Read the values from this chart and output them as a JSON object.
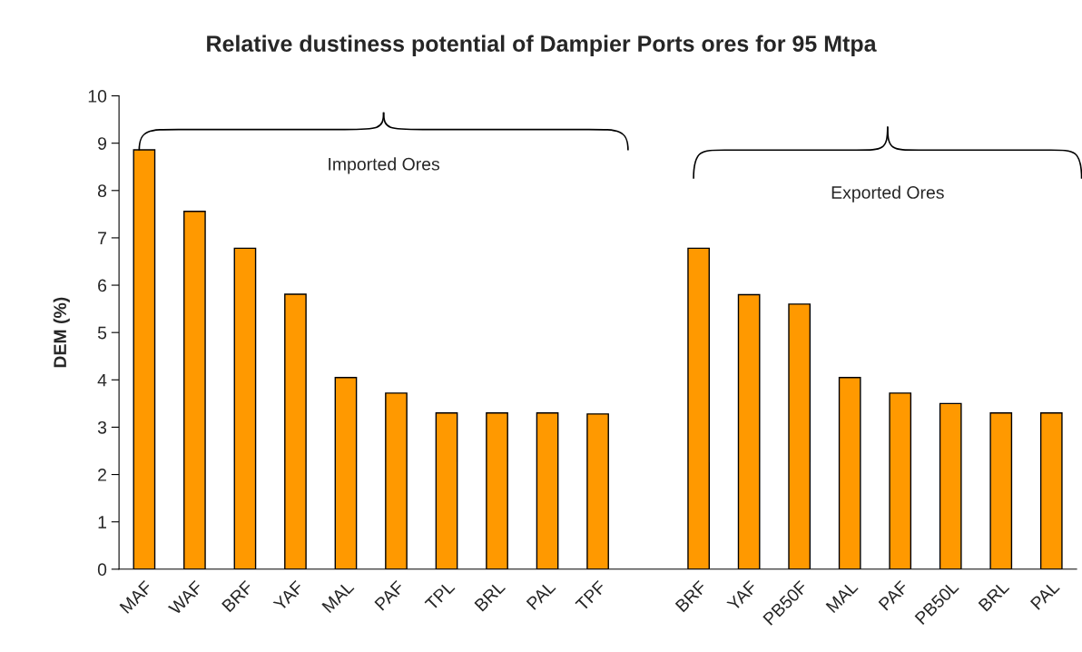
{
  "chart_data": {
    "type": "bar",
    "title": "Relative dustiness potential of Dampier Ports ores for 95 Mtpa",
    "ylabel": "DEM (%)",
    "categories": [
      "MAF",
      "WAF",
      "BRF",
      "YAF",
      "MAL",
      "PAF",
      "TPL",
      "BRL",
      "PAL",
      "TPF",
      null,
      "BRF",
      "YAF",
      "PB50F",
      "MAL",
      "PAF",
      "PB50L",
      "BRL",
      "PAL"
    ],
    "values": [
      8.86,
      7.56,
      6.78,
      5.81,
      4.05,
      3.72,
      3.3,
      3.3,
      3.3,
      3.28,
      null,
      6.78,
      5.8,
      5.6,
      4.05,
      3.72,
      3.5,
      3.3,
      3.3
    ],
    "color": "#ff9900",
    "ylim": [
      0,
      10
    ],
    "yticks": [
      0,
      1,
      2,
      3,
      4,
      5,
      6,
      7,
      8,
      9,
      10
    ],
    "annotations": [
      "Imported Ores",
      "Exported Ores"
    ]
  }
}
